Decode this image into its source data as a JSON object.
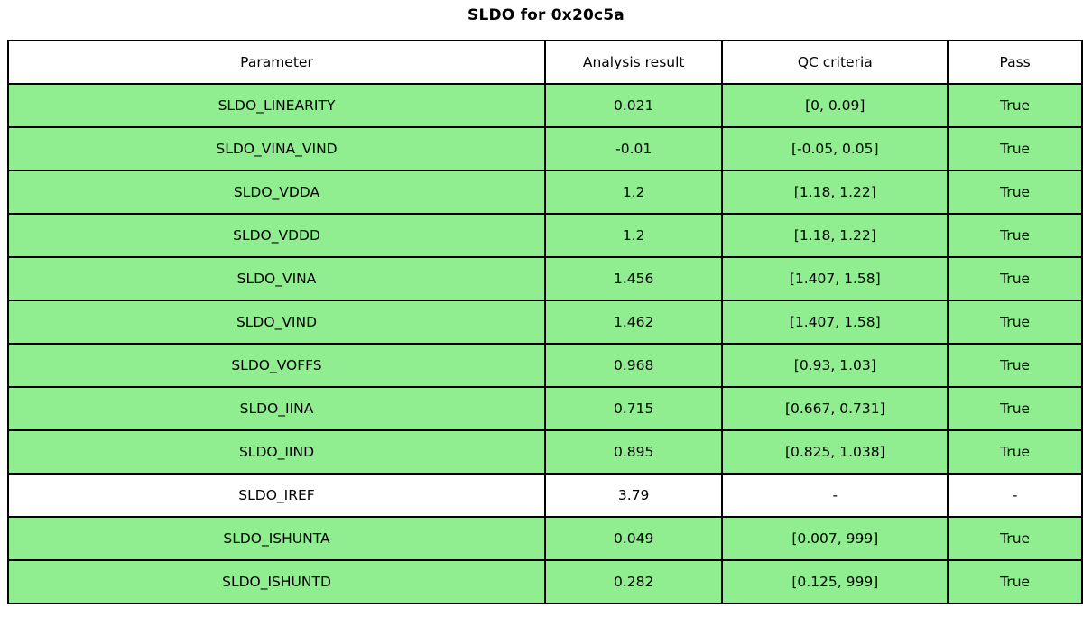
{
  "title": "SLDO for 0x20c5a",
  "colors": {
    "pass_row_bg": "#90EE90",
    "neutral_row_bg": "#ffffff",
    "border": "#000000",
    "text": "#000000"
  },
  "chart_data": {
    "type": "table",
    "title": "SLDO for 0x20c5a",
    "columns": [
      "Parameter",
      "Analysis result",
      "QC criteria",
      "Pass"
    ],
    "rows": [
      {
        "parameter": "SLDO_LINEARITY",
        "result": "0.021",
        "criteria": "[0, 0.09]",
        "pass": "True",
        "highlighted": true
      },
      {
        "parameter": "SLDO_VINA_VIND",
        "result": "-0.01",
        "criteria": "[-0.05, 0.05]",
        "pass": "True",
        "highlighted": true
      },
      {
        "parameter": "SLDO_VDDA",
        "result": "1.2",
        "criteria": "[1.18, 1.22]",
        "pass": "True",
        "highlighted": true
      },
      {
        "parameter": "SLDO_VDDD",
        "result": "1.2",
        "criteria": "[1.18, 1.22]",
        "pass": "True",
        "highlighted": true
      },
      {
        "parameter": "SLDO_VINA",
        "result": "1.456",
        "criteria": "[1.407, 1.58]",
        "pass": "True",
        "highlighted": true
      },
      {
        "parameter": "SLDO_VIND",
        "result": "1.462",
        "criteria": "[1.407, 1.58]",
        "pass": "True",
        "highlighted": true
      },
      {
        "parameter": "SLDO_VOFFS",
        "result": "0.968",
        "criteria": "[0.93, 1.03]",
        "pass": "True",
        "highlighted": true
      },
      {
        "parameter": "SLDO_IINA",
        "result": "0.715",
        "criteria": "[0.667, 0.731]",
        "pass": "True",
        "highlighted": true
      },
      {
        "parameter": "SLDO_IIND",
        "result": "0.895",
        "criteria": "[0.825, 1.038]",
        "pass": "True",
        "highlighted": true
      },
      {
        "parameter": "SLDO_IREF",
        "result": "3.79",
        "criteria": "-",
        "pass": "-",
        "highlighted": false
      },
      {
        "parameter": "SLDO_ISHUNTA",
        "result": "0.049",
        "criteria": "[0.007, 999]",
        "pass": "True",
        "highlighted": true
      },
      {
        "parameter": "SLDO_ISHUNTD",
        "result": "0.282",
        "criteria": "[0.125, 999]",
        "pass": "True",
        "highlighted": true
      }
    ]
  }
}
